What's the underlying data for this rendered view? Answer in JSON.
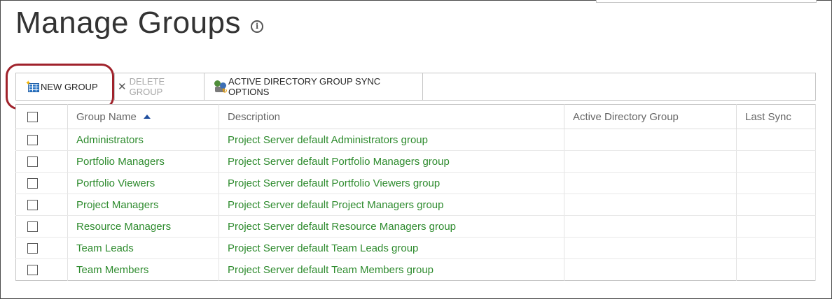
{
  "page": {
    "title": "Manage Groups",
    "info_icon": "info-icon"
  },
  "toolbar": {
    "new_group": {
      "label": "NEW GROUP",
      "icon": "new-group-icon",
      "enabled": true
    },
    "delete_group": {
      "label": "DELETE GROUP",
      "icon": "delete-x-icon",
      "enabled": false
    },
    "ad_sync": {
      "label": "ACTIVE DIRECTORY GROUP SYNC OPTIONS",
      "icon": "ad-sync-icon",
      "enabled": true
    }
  },
  "table": {
    "headers": {
      "name": "Group Name",
      "description": "Description",
      "ad_group": "Active Directory Group",
      "last_sync": "Last Sync"
    },
    "sort": {
      "column": "name",
      "direction": "ascending"
    },
    "rows": [
      {
        "name": "Administrators",
        "description": "Project Server default Administrators group",
        "ad_group": "",
        "last_sync": ""
      },
      {
        "name": "Portfolio Managers",
        "description": "Project Server default Portfolio Managers group",
        "ad_group": "",
        "last_sync": ""
      },
      {
        "name": "Portfolio Viewers",
        "description": "Project Server default Portfolio Viewers group",
        "ad_group": "",
        "last_sync": ""
      },
      {
        "name": "Project Managers",
        "description": "Project Server default Project Managers group",
        "ad_group": "",
        "last_sync": ""
      },
      {
        "name": "Resource Managers",
        "description": "Project Server default Resource Managers group",
        "ad_group": "",
        "last_sync": ""
      },
      {
        "name": "Team Leads",
        "description": "Project Server default Team Leads group",
        "ad_group": "",
        "last_sync": ""
      },
      {
        "name": "Team Members",
        "description": "Project Server default Team Members group",
        "ad_group": "",
        "last_sync": ""
      }
    ]
  },
  "colors": {
    "link_green": "#2e8b2e",
    "highlight_red": "#a0222b",
    "sort_blue": "#1f4e9e"
  }
}
